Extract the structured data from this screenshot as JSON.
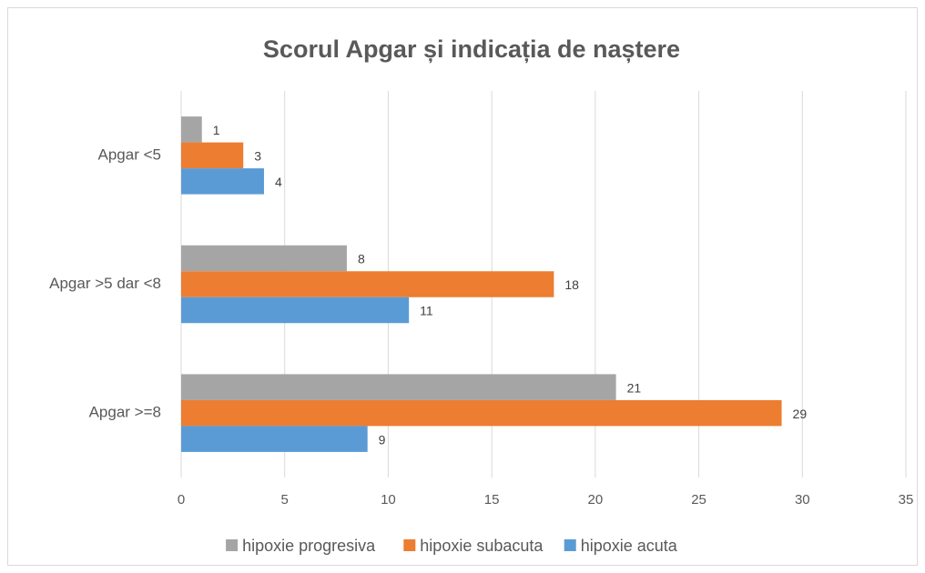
{
  "chart_data": {
    "type": "hbar",
    "title": "Scorul Apgar și indicația de naștere",
    "categories": [
      "Apgar <5",
      "Apgar >5 dar <8",
      "Apgar >=8"
    ],
    "series": [
      {
        "name": "hipoxie progresiva",
        "color": "#a5a5a5",
        "values": [
          1,
          8,
          21
        ]
      },
      {
        "name": "hipoxie subacuta",
        "color": "#ed7d31",
        "values": [
          3,
          18,
          29
        ]
      },
      {
        "name": "hipoxie acuta",
        "color": "#5b9bd5",
        "values": [
          4,
          11,
          9
        ]
      }
    ],
    "xlim": [
      0,
      35
    ],
    "xticks": [
      0,
      5,
      10,
      15,
      20,
      25,
      30,
      35
    ],
    "grid": true,
    "legend": "bottom"
  }
}
